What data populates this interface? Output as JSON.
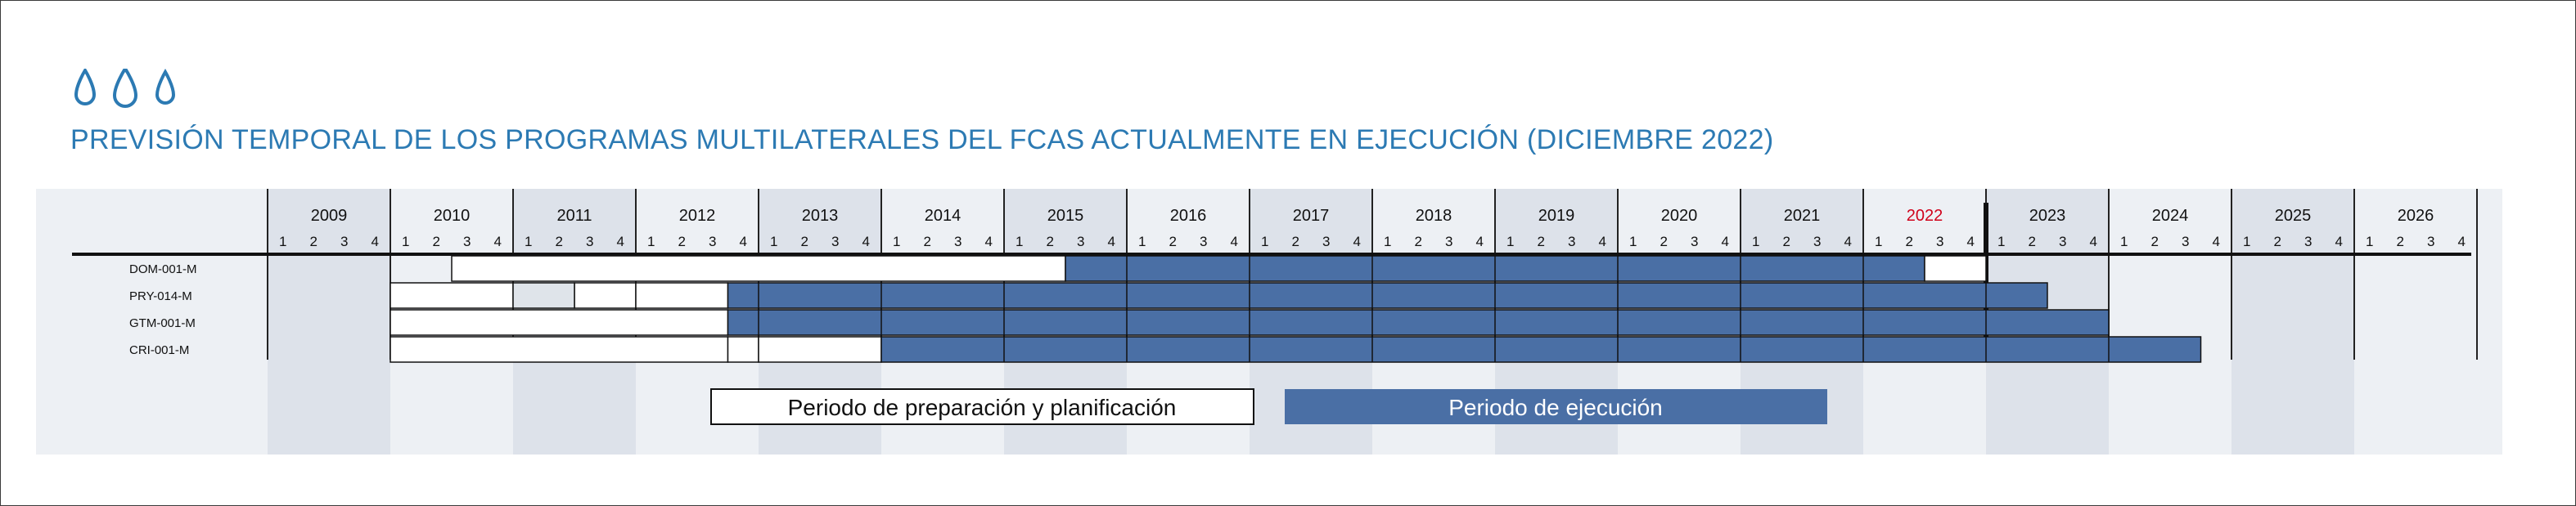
{
  "title": "PREVISIÓN TEMPORAL DE LOS PROGRAMAS MULTILATERALES DEL FCAS ACTUALMENTE EN EJECUCIÓN (DICIEMBRE 2022)",
  "header_icons": [
    "water-drop-icon",
    "water-drop-icon",
    "water-drop-icon"
  ],
  "colors": {
    "accent": "#2c7ab3",
    "execution": "#4a6fa5",
    "preparation": "#ffffff",
    "highlight_year": "#d0021b",
    "band_dark": "#dde2ea",
    "band_light": "#edf0f4",
    "grey_box": "#dfe4ea"
  },
  "chart_data": {
    "type": "gantt",
    "title": "PREVISIÓN TEMPORAL DE LOS PROGRAMAS MULTILATERALES DEL FCAS ACTUALMENTE EN EJECUCIÓN (DICIEMBRE 2022)",
    "years": [
      "2009",
      "2010",
      "2011",
      "2012",
      "2013",
      "2014",
      "2015",
      "2016",
      "2017",
      "2018",
      "2019",
      "2020",
      "2021",
      "2022",
      "2023",
      "2024",
      "2025",
      "2026"
    ],
    "quarters": [
      "1",
      "2",
      "3",
      "4"
    ],
    "highlighted_year": "2022",
    "current_marker": {
      "year": 2023,
      "quarter": 1
    },
    "rows": [
      {
        "label": "DOM-001-M",
        "preparation": [
          {
            "start": [
              2010,
              3
            ],
            "end": [
              2015,
              2
            ]
          }
        ],
        "execution": {
          "start": [
            2015,
            3
          ],
          "end": [
            2022,
            2
          ]
        },
        "extension": {
          "start": [
            2022,
            3
          ],
          "end": [
            2022,
            4
          ]
        }
      },
      {
        "label": "PRY-014-M",
        "preparation": [
          {
            "start": [
              2010,
              1
            ],
            "end": [
              2010,
              4
            ]
          },
          {
            "start": [
              2011,
              3
            ],
            "end": [
              2011,
              4
            ]
          },
          {
            "start": [
              2012,
              1
            ],
            "end": [
              2012,
              3
            ]
          }
        ],
        "grey": {
          "start": [
            2011,
            1
          ],
          "end": [
            2011,
            2
          ]
        },
        "execution": {
          "start": [
            2012,
            4
          ],
          "end": [
            2023,
            2
          ]
        },
        "extension": null
      },
      {
        "label": "GTM-001-M",
        "preparation": [
          {
            "start": [
              2010,
              1
            ],
            "end": [
              2012,
              3
            ]
          }
        ],
        "execution": {
          "start": [
            2012,
            4
          ],
          "end": [
            2023,
            4
          ]
        },
        "extension": null
      },
      {
        "label": "CRI-001-M",
        "preparation": [
          {
            "start": [
              2010,
              1
            ],
            "end": [
              2012,
              3
            ]
          },
          {
            "start": [
              2012,
              4
            ],
            "end": [
              2012,
              4
            ]
          },
          {
            "start": [
              2013,
              1
            ],
            "end": [
              2013,
              4
            ]
          }
        ],
        "execution": {
          "start": [
            2014,
            1
          ],
          "end": [
            2024,
            3
          ]
        },
        "extension": null
      }
    ],
    "legend": {
      "preparation": "Periodo de preparación y planificación",
      "execution": "Periodo de ejecución"
    }
  }
}
